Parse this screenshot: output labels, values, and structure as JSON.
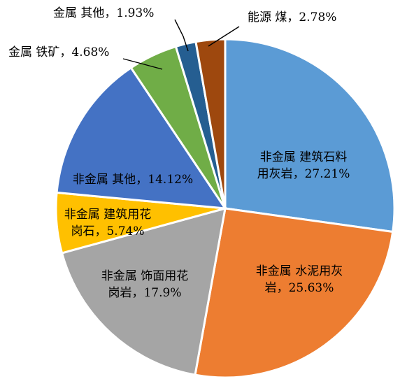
{
  "chart_data": {
    "type": "pie",
    "title": "",
    "slices": [
      {
        "name": "非金属 建筑石料用灰岩",
        "value": 27.21,
        "label_lines": [
          "非金属  建筑石料",
          "用灰岩，27.21%"
        ],
        "color": "#5b9bd5"
      },
      {
        "name": "非金属 水泥用灰岩",
        "value": 25.63,
        "label_lines": [
          "非金属  水泥用灰",
          "岩，25.63%"
        ],
        "color": "#ed7d31"
      },
      {
        "name": "非金属 饰面用花岗岩",
        "value": 17.9,
        "label_lines": [
          "非金属  饰面用花",
          "岗岩，17.9%"
        ],
        "color": "#a5a5a5"
      },
      {
        "name": "非金属 建筑用花岗石",
        "value": 5.74,
        "label_lines": [
          "非金属  建筑用花",
          "岗石，5.74%"
        ],
        "color": "#ffc000"
      },
      {
        "name": "非金属 其他",
        "value": 14.12,
        "label_lines": [
          "非金属  其他，14.12%"
        ],
        "color": "#4472c4"
      },
      {
        "name": "金属 铁矿",
        "value": 4.68,
        "label_lines": [
          "金属  铁矿，4.68%"
        ],
        "color": "#70ad47"
      },
      {
        "name": "金属 其他",
        "value": 1.93,
        "label_lines": [
          "金属  其他，1.93%"
        ],
        "color": "#255e91"
      },
      {
        "name": "能源 煤",
        "value": 2.78,
        "label_lines": [
          "能源  煤，2.78%"
        ],
        "color": "#9e480e"
      }
    ],
    "legend": "none"
  }
}
